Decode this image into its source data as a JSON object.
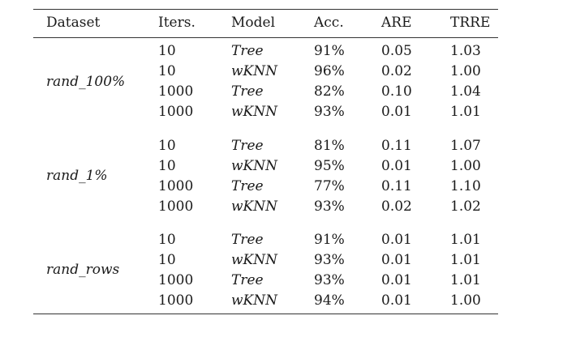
{
  "table": {
    "headers": [
      "Dataset",
      "Iters.",
      "Model",
      "Acc.",
      "ARE",
      "TRRE"
    ],
    "groups": [
      {
        "dataset": "rand_100%",
        "rows": [
          [
            "10",
            "Tree",
            "91%",
            "0.05",
            "1.03"
          ],
          [
            "10",
            "wKNN",
            "96%",
            "0.02",
            "1.00"
          ],
          [
            "1000",
            "Tree",
            "82%",
            "0.10",
            "1.04"
          ],
          [
            "1000",
            "wKNN",
            "93%",
            "0.01",
            "1.01"
          ]
        ]
      },
      {
        "dataset": "rand_1%",
        "rows": [
          [
            "10",
            "Tree",
            "81%",
            "0.11",
            "1.07"
          ],
          [
            "10",
            "wKNN",
            "95%",
            "0.01",
            "1.00"
          ],
          [
            "1000",
            "Tree",
            "77%",
            "0.11",
            "1.10"
          ],
          [
            "1000",
            "wKNN",
            "93%",
            "0.02",
            "1.02"
          ]
        ]
      },
      {
        "dataset": "rand_rows",
        "rows": [
          [
            "10",
            "Tree",
            "91%",
            "0.01",
            "1.01"
          ],
          [
            "10",
            "wKNN",
            "93%",
            "0.01",
            "1.01"
          ],
          [
            "1000",
            "Tree",
            "93%",
            "0.01",
            "1.01"
          ],
          [
            "1000",
            "wKNN",
            "94%",
            "0.01",
            "1.00"
          ]
        ]
      }
    ]
  }
}
